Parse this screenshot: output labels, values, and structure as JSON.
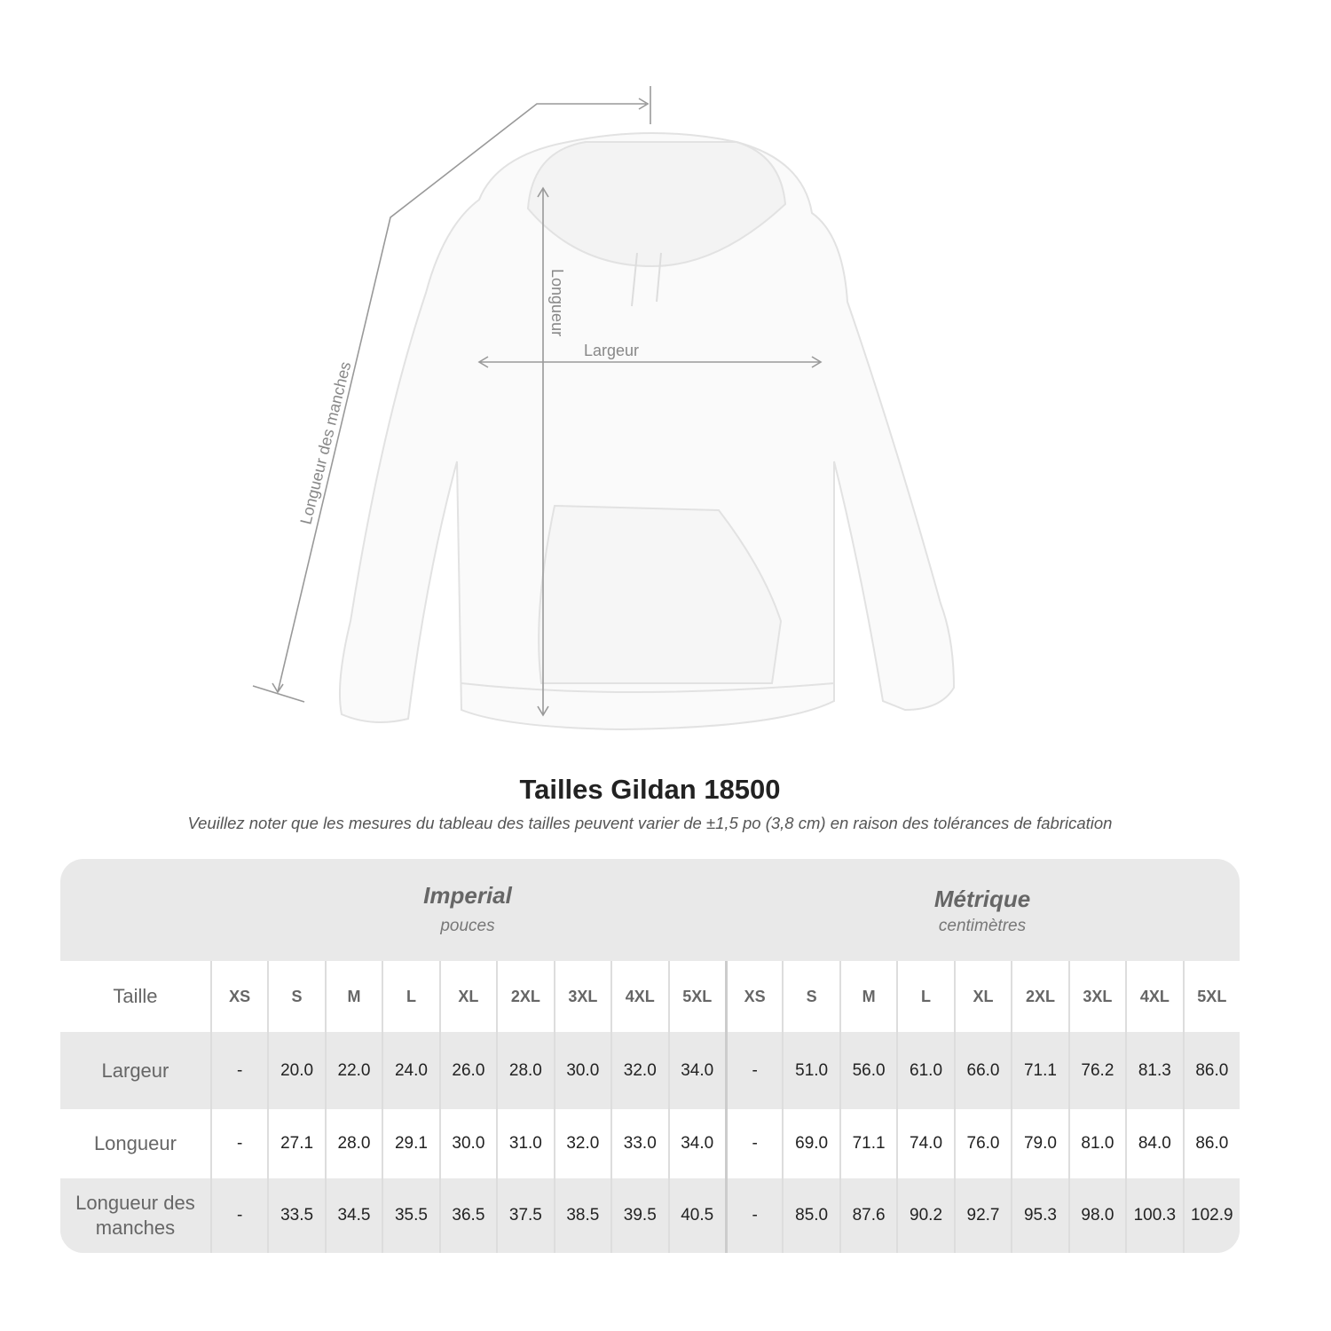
{
  "illustration": {
    "labels": {
      "sleeve": "Longueur des manches",
      "length": "Longueur",
      "width": "Largeur"
    }
  },
  "title": "Tailles Gildan 18500",
  "note": "Veuillez noter que les mesures du tableau des tailles peuvent varier de ±1,5 po (3,8 cm) en raison des tolérances de fabrication",
  "table": {
    "imperial": {
      "system": "Imperial",
      "unit": "pouces"
    },
    "metric": {
      "system": "Métrique",
      "unit": "centimètres"
    },
    "header_label": "Taille",
    "sizes": [
      "XS",
      "S",
      "M",
      "L",
      "XL",
      "2XL",
      "3XL",
      "4XL",
      "5XL"
    ],
    "rows": [
      {
        "label": "Largeur",
        "imperial": [
          "-",
          "20.0",
          "22.0",
          "24.0",
          "26.0",
          "28.0",
          "30.0",
          "32.0",
          "34.0"
        ],
        "metric": [
          "-",
          "51.0",
          "56.0",
          "61.0",
          "66.0",
          "71.1",
          "76.2",
          "81.3",
          "86.0"
        ]
      },
      {
        "label": "Longueur",
        "imperial": [
          "-",
          "27.1",
          "28.0",
          "29.1",
          "30.0",
          "31.0",
          "32.0",
          "33.0",
          "34.0"
        ],
        "metric": [
          "-",
          "69.0",
          "71.1",
          "74.0",
          "76.0",
          "79.0",
          "81.0",
          "84.0",
          "86.0"
        ]
      },
      {
        "label": "Longueur des manches",
        "imperial": [
          "-",
          "33.5",
          "34.5",
          "35.5",
          "36.5",
          "37.5",
          "38.5",
          "39.5",
          "40.5"
        ],
        "metric": [
          "-",
          "85.0",
          "87.6",
          "90.2",
          "92.7",
          "95.3",
          "98.0",
          "100.3",
          "102.9"
        ]
      }
    ]
  }
}
